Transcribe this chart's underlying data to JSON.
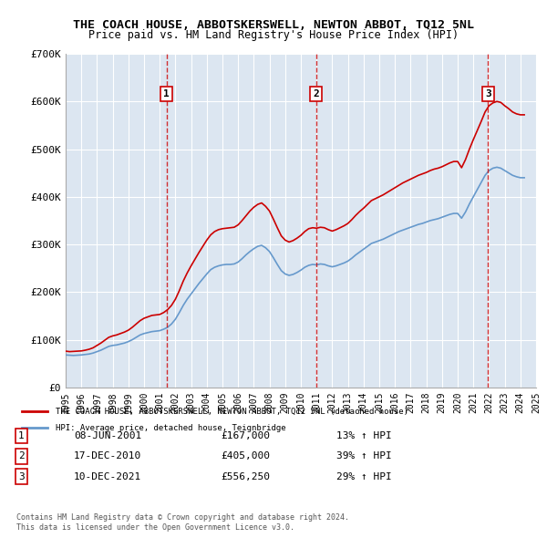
{
  "title": "THE COACH HOUSE, ABBOTSKERSWELL, NEWTON ABBOT, TQ12 5NL",
  "subtitle": "Price paid vs. HM Land Registry's House Price Index (HPI)",
  "ylabel": "",
  "background_color": "#dce6f1",
  "plot_bg_color": "#dce6f1",
  "ylim": [
    0,
    700000
  ],
  "yticks": [
    0,
    100000,
    200000,
    300000,
    400000,
    500000,
    600000,
    700000
  ],
  "ytick_labels": [
    "£0",
    "£100K",
    "£200K",
    "£300K",
    "£400K",
    "£500K",
    "£600K",
    "£700K"
  ],
  "legend_label_red": "THE COACH HOUSE, ABBOTSKERSWELL, NEWTON ABBOT, TQ12 5NL (detached house)",
  "legend_label_blue": "HPI: Average price, detached house, Teignbridge",
  "sales": [
    {
      "num": 1,
      "date": "08-JUN-2001",
      "price": 167000,
      "pct": "13%",
      "direction": "↑",
      "year": 2001.44
    },
    {
      "num": 2,
      "date": "17-DEC-2010",
      "price": 405000,
      "pct": "39%",
      "direction": "↑",
      "year": 2010.96
    },
    {
      "num": 3,
      "date": "10-DEC-2021",
      "price": 556250,
      "pct": "29%",
      "direction": "↑",
      "year": 2021.94
    }
  ],
  "footer": "Contains HM Land Registry data © Crown copyright and database right 2024.\nThis data is licensed under the Open Government Licence v3.0.",
  "red_color": "#cc0000",
  "blue_color": "#6699cc",
  "hpi_data": {
    "years": [
      1995.0,
      1995.25,
      1995.5,
      1995.75,
      1996.0,
      1996.25,
      1996.5,
      1996.75,
      1997.0,
      1997.25,
      1997.5,
      1997.75,
      1998.0,
      1998.25,
      1998.5,
      1998.75,
      1999.0,
      1999.25,
      1999.5,
      1999.75,
      2000.0,
      2000.25,
      2000.5,
      2000.75,
      2001.0,
      2001.25,
      2001.5,
      2001.75,
      2002.0,
      2002.25,
      2002.5,
      2002.75,
      2003.0,
      2003.25,
      2003.5,
      2003.75,
      2004.0,
      2004.25,
      2004.5,
      2004.75,
      2005.0,
      2005.25,
      2005.5,
      2005.75,
      2006.0,
      2006.25,
      2006.5,
      2006.75,
      2007.0,
      2007.25,
      2007.5,
      2007.75,
      2008.0,
      2008.25,
      2008.5,
      2008.75,
      2009.0,
      2009.25,
      2009.5,
      2009.75,
      2010.0,
      2010.25,
      2010.5,
      2010.75,
      2011.0,
      2011.25,
      2011.5,
      2011.75,
      2012.0,
      2012.25,
      2012.5,
      2012.75,
      2013.0,
      2013.25,
      2013.5,
      2013.75,
      2014.0,
      2014.25,
      2014.5,
      2014.75,
      2015.0,
      2015.25,
      2015.5,
      2015.75,
      2016.0,
      2016.25,
      2016.5,
      2016.75,
      2017.0,
      2017.25,
      2017.5,
      2017.75,
      2018.0,
      2018.25,
      2018.5,
      2018.75,
      2019.0,
      2019.25,
      2019.5,
      2019.75,
      2020.0,
      2020.25,
      2020.5,
      2020.75,
      2021.0,
      2021.25,
      2021.5,
      2021.75,
      2022.0,
      2022.25,
      2022.5,
      2022.75,
      2023.0,
      2023.25,
      2023.5,
      2023.75,
      2024.0,
      2024.25
    ],
    "values": [
      68000,
      67500,
      67000,
      67500,
      68000,
      69000,
      70000,
      72000,
      75000,
      78000,
      82000,
      86000,
      88000,
      89000,
      91000,
      93000,
      96000,
      100000,
      105000,
      110000,
      113000,
      115000,
      117000,
      118000,
      119000,
      122000,
      126000,
      133000,
      143000,
      157000,
      172000,
      185000,
      196000,
      207000,
      218000,
      228000,
      238000,
      247000,
      252000,
      255000,
      257000,
      258000,
      258000,
      259000,
      263000,
      270000,
      278000,
      285000,
      291000,
      296000,
      298000,
      293000,
      285000,
      272000,
      258000,
      245000,
      238000,
      235000,
      237000,
      241000,
      246000,
      252000,
      256000,
      258000,
      257000,
      259000,
      258000,
      255000,
      253000,
      255000,
      258000,
      261000,
      265000,
      271000,
      278000,
      284000,
      290000,
      296000,
      302000,
      305000,
      308000,
      311000,
      315000,
      319000,
      323000,
      327000,
      330000,
      333000,
      336000,
      339000,
      342000,
      344000,
      347000,
      350000,
      352000,
      354000,
      357000,
      360000,
      363000,
      365000,
      365000,
      355000,
      368000,
      385000,
      400000,
      415000,
      430000,
      445000,
      455000,
      460000,
      462000,
      460000,
      455000,
      450000,
      445000,
      442000,
      440000,
      440000
    ]
  },
  "red_data": {
    "years": [
      1995.0,
      1995.25,
      1995.5,
      1995.75,
      1996.0,
      1996.25,
      1996.5,
      1996.75,
      1997.0,
      1997.25,
      1997.5,
      1997.75,
      1998.0,
      1998.25,
      1998.5,
      1998.75,
      1999.0,
      1999.25,
      1999.5,
      1999.75,
      2000.0,
      2000.25,
      2000.5,
      2000.75,
      2001.0,
      2001.25,
      2001.5,
      2001.75,
      2002.0,
      2002.25,
      2002.5,
      2002.75,
      2003.0,
      2003.25,
      2003.5,
      2003.75,
      2004.0,
      2004.25,
      2004.5,
      2004.75,
      2005.0,
      2005.25,
      2005.5,
      2005.75,
      2006.0,
      2006.25,
      2006.5,
      2006.75,
      2007.0,
      2007.25,
      2007.5,
      2007.75,
      2008.0,
      2008.25,
      2008.5,
      2008.75,
      2009.0,
      2009.25,
      2009.5,
      2009.75,
      2010.0,
      2010.25,
      2010.5,
      2010.75,
      2011.0,
      2011.25,
      2011.5,
      2011.75,
      2012.0,
      2012.25,
      2012.5,
      2012.75,
      2013.0,
      2013.25,
      2013.5,
      2013.75,
      2014.0,
      2014.25,
      2014.5,
      2014.75,
      2015.0,
      2015.25,
      2015.5,
      2015.75,
      2016.0,
      2016.25,
      2016.5,
      2016.75,
      2017.0,
      2017.25,
      2017.5,
      2017.75,
      2018.0,
      2018.25,
      2018.5,
      2018.75,
      2019.0,
      2019.25,
      2019.5,
      2019.75,
      2020.0,
      2020.25,
      2020.5,
      2020.75,
      2021.0,
      2021.25,
      2021.5,
      2021.75,
      2022.0,
      2022.25,
      2022.5,
      2022.75,
      2023.0,
      2023.25,
      2023.5,
      2023.75,
      2024.0,
      2024.25
    ],
    "values": [
      76000,
      75000,
      75500,
      76000,
      76500,
      78000,
      80000,
      83000,
      88000,
      93000,
      99000,
      105000,
      108000,
      110000,
      113000,
      116000,
      120000,
      126000,
      133000,
      140000,
      145000,
      148000,
      151000,
      152000,
      153000,
      157000,
      163000,
      172000,
      185000,
      203000,
      223000,
      240000,
      255000,
      269000,
      283000,
      296000,
      309000,
      320000,
      327000,
      331000,
      333000,
      334000,
      335000,
      336000,
      341000,
      350000,
      360000,
      370000,
      378000,
      384000,
      387000,
      380000,
      370000,
      353000,
      335000,
      318000,
      309000,
      305000,
      308000,
      313000,
      319000,
      327000,
      333000,
      335000,
      334000,
      336000,
      335000,
      331000,
      328000,
      331000,
      335000,
      339000,
      344000,
      352000,
      361000,
      369000,
      376000,
      384000,
      392000,
      396000,
      400000,
      404000,
      409000,
      414000,
      419000,
      424000,
      429000,
      433000,
      437000,
      441000,
      445000,
      448000,
      451000,
      455000,
      458000,
      460000,
      463000,
      467000,
      471000,
      474000,
      474000,
      461000,
      478000,
      500000,
      520000,
      539000,
      558000,
      578000,
      591000,
      597000,
      600000,
      598000,
      591000,
      585000,
      578000,
      574000,
      572000,
      572000
    ]
  },
  "xlim_start": 1995.0,
  "xlim_end": 2025.0,
  "xtick_years": [
    1995,
    1996,
    1997,
    1998,
    1999,
    2000,
    2001,
    2002,
    2003,
    2004,
    2005,
    2006,
    2007,
    2008,
    2009,
    2010,
    2011,
    2012,
    2013,
    2014,
    2015,
    2016,
    2017,
    2018,
    2019,
    2020,
    2021,
    2022,
    2023,
    2024,
    2025
  ]
}
